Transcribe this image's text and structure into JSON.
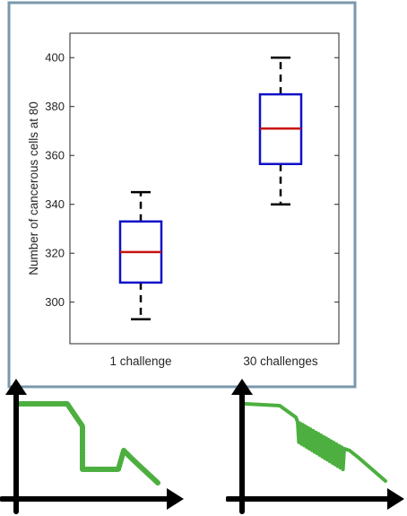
{
  "chart_data": {
    "type": "boxplot",
    "title": "",
    "xlabel": "",
    "ylabel": "Number of cancerous cells at 80",
    "ylim": [
      283,
      410
    ],
    "yticks": [
      300,
      320,
      340,
      360,
      380,
      400
    ],
    "categories": [
      "1 challenge",
      "30 challenges"
    ],
    "boxes": [
      {
        "category": "1 challenge",
        "whisker_low": 293,
        "q1": 308,
        "median": 320.5,
        "q3": 333,
        "whisker_high": 345
      },
      {
        "category": "30 challenges",
        "whisker_low": 340,
        "q1": 356.5,
        "median": 371,
        "q3": 385,
        "whisker_high": 400
      }
    ],
    "grid": false,
    "colors": {
      "box": "#1010c8",
      "median": "#c81010",
      "whisker": "#000000",
      "frame": "#7a98ad"
    }
  },
  "sketches": {
    "stroke_color": "#4caf3f",
    "axis_color": "#000000",
    "left_label": "",
    "right_label": ""
  }
}
